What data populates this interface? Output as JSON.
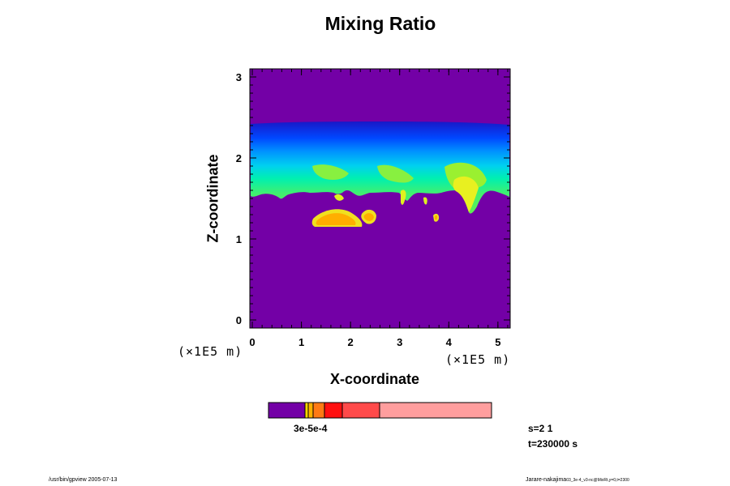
{
  "chart_data": {
    "type": "heatmap",
    "title": "Mixing Ratio",
    "xlabel": "X-coordinate",
    "ylabel": "Z-coordinate",
    "x_unit": "(×1E5 m)",
    "z_unit": "(×1E5 m)",
    "xlim": [
      -0.05,
      5.25
    ],
    "ylim": [
      -0.1,
      3.1
    ],
    "x_ticks": [
      "0",
      "1",
      "2",
      "3",
      "4",
      "5"
    ],
    "y_ticks": [
      "0",
      "1",
      "2",
      "3"
    ],
    "colorbar": {
      "label_text": "3e-5e-4",
      "colors": [
        "#7300a6",
        "#ffd700",
        "#ffb000",
        "#ff7a14",
        "#ff1010",
        "#ff4a4a",
        "#ff9e9e"
      ]
    },
    "info": {
      "s": "s=2 1",
      "t": "t=230000 s"
    },
    "footer": {
      "left": "/usr/bin/gpview 2005-07-13",
      "right_main": "Jarare-nakajima",
      "right_small": "03_3e-4_v3-nc@MixRt,y=0,t=2300"
    }
  }
}
